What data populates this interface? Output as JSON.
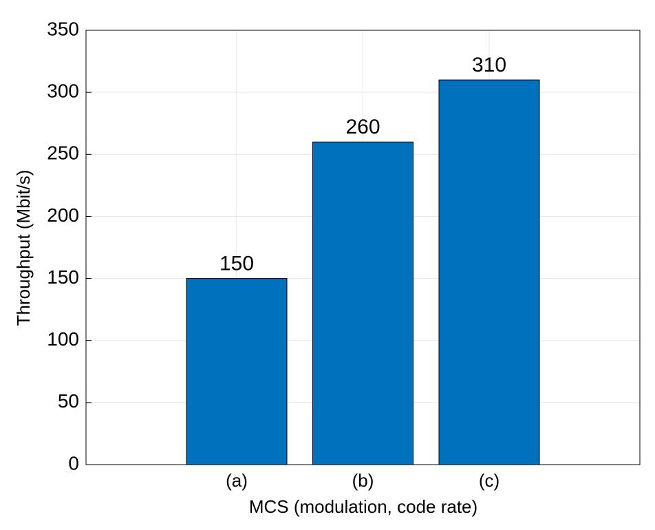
{
  "chart_data": {
    "type": "bar",
    "xlabel": "MCS (modulation, code rate)",
    "ylabel": "Throughput (Mbit/s)",
    "categories": [
      "(a)",
      "(b)",
      "(c)"
    ],
    "values": [
      150,
      260,
      310
    ],
    "color": "#0072bd",
    "ylim": [
      0,
      350
    ],
    "yticks": [
      0,
      50,
      100,
      150,
      200,
      250,
      300,
      350
    ],
    "grid": true
  }
}
